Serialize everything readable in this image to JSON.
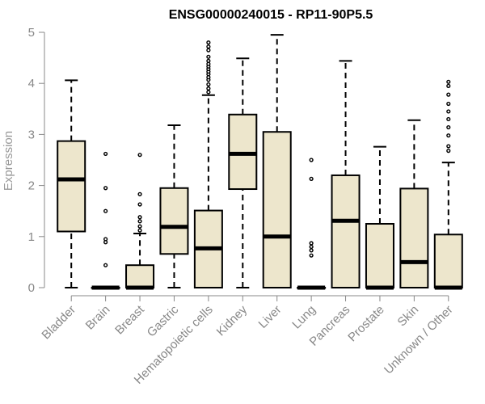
{
  "chart_data": {
    "type": "boxplot",
    "title": "ENSG00000240015 - RP11-90P5.5",
    "xlabel": "",
    "ylabel": "Expression",
    "ylim": [
      0,
      5
    ],
    "yticks": [
      0,
      1,
      2,
      3,
      4,
      5
    ],
    "box_fill": "#ede6cc",
    "outline_color": "#000000",
    "axis_color": "#888888",
    "categories": [
      "Bladder",
      "Brain",
      "Breast",
      "Gastric",
      "Hematopoietic cells",
      "Kidney",
      "Liver",
      "Lung",
      "Pancreas",
      "Prostate",
      "Skin",
      "Unknown / Other"
    ],
    "boxes": [
      {
        "name": "Bladder",
        "lower_whisker": 0,
        "q1": 1.1,
        "median": 2.12,
        "q3": 2.87,
        "upper_whisker": 4.06,
        "outliers": []
      },
      {
        "name": "Brain",
        "lower_whisker": 0,
        "q1": 0,
        "median": 0,
        "q3": 0,
        "upper_whisker": 0,
        "outliers": [
          0.44,
          0.89,
          0.95,
          1.5,
          1.95,
          2.62
        ]
      },
      {
        "name": "Breast",
        "lower_whisker": 0,
        "q1": 0,
        "median": 0,
        "q3": 0.44,
        "upper_whisker": 1.06,
        "outliers": [
          1.12,
          1.2,
          1.3,
          1.38,
          1.63,
          1.83,
          2.6
        ]
      },
      {
        "name": "Gastric",
        "lower_whisker": 0,
        "q1": 0.66,
        "median": 1.19,
        "q3": 1.95,
        "upper_whisker": 3.18,
        "outliers": []
      },
      {
        "name": "Hematopoietic cells",
        "lower_whisker": 0,
        "q1": 0,
        "median": 0.77,
        "q3": 1.51,
        "upper_whisker": 3.77,
        "outliers": [
          3.83,
          3.9,
          3.98,
          4.07,
          4.12,
          4.18,
          4.23,
          4.28,
          4.33,
          4.38,
          4.44,
          4.52,
          4.65,
          4.72,
          4.8
        ]
      },
      {
        "name": "Kidney",
        "lower_whisker": 0,
        "q1": 1.93,
        "median": 2.62,
        "q3": 3.39,
        "upper_whisker": 4.49,
        "outliers": []
      },
      {
        "name": "Liver",
        "lower_whisker": 0,
        "q1": 0,
        "median": 1.0,
        "q3": 3.05,
        "upper_whisker": 4.95,
        "outliers": []
      },
      {
        "name": "Lung",
        "lower_whisker": 0,
        "q1": 0,
        "median": 0,
        "q3": 0,
        "upper_whisker": 0,
        "outliers": [
          0.63,
          0.73,
          0.8,
          0.87,
          2.13,
          2.5
        ]
      },
      {
        "name": "Pancreas",
        "lower_whisker": 0,
        "q1": 0,
        "median": 1.31,
        "q3": 2.2,
        "upper_whisker": 4.44,
        "outliers": []
      },
      {
        "name": "Prostate",
        "lower_whisker": 0,
        "q1": 0,
        "median": 0,
        "q3": 1.25,
        "upper_whisker": 2.76,
        "outliers": []
      },
      {
        "name": "Skin",
        "lower_whisker": 0,
        "q1": 0,
        "median": 0.5,
        "q3": 1.94,
        "upper_whisker": 3.28,
        "outliers": []
      },
      {
        "name": "Unknown / Other",
        "lower_whisker": 0,
        "q1": 0,
        "median": 0,
        "q3": 1.04,
        "upper_whisker": 2.45,
        "outliers": [
          2.68,
          2.77,
          2.98,
          3.14,
          3.3,
          3.45,
          3.6,
          3.78,
          3.95,
          4.03
        ]
      }
    ]
  }
}
